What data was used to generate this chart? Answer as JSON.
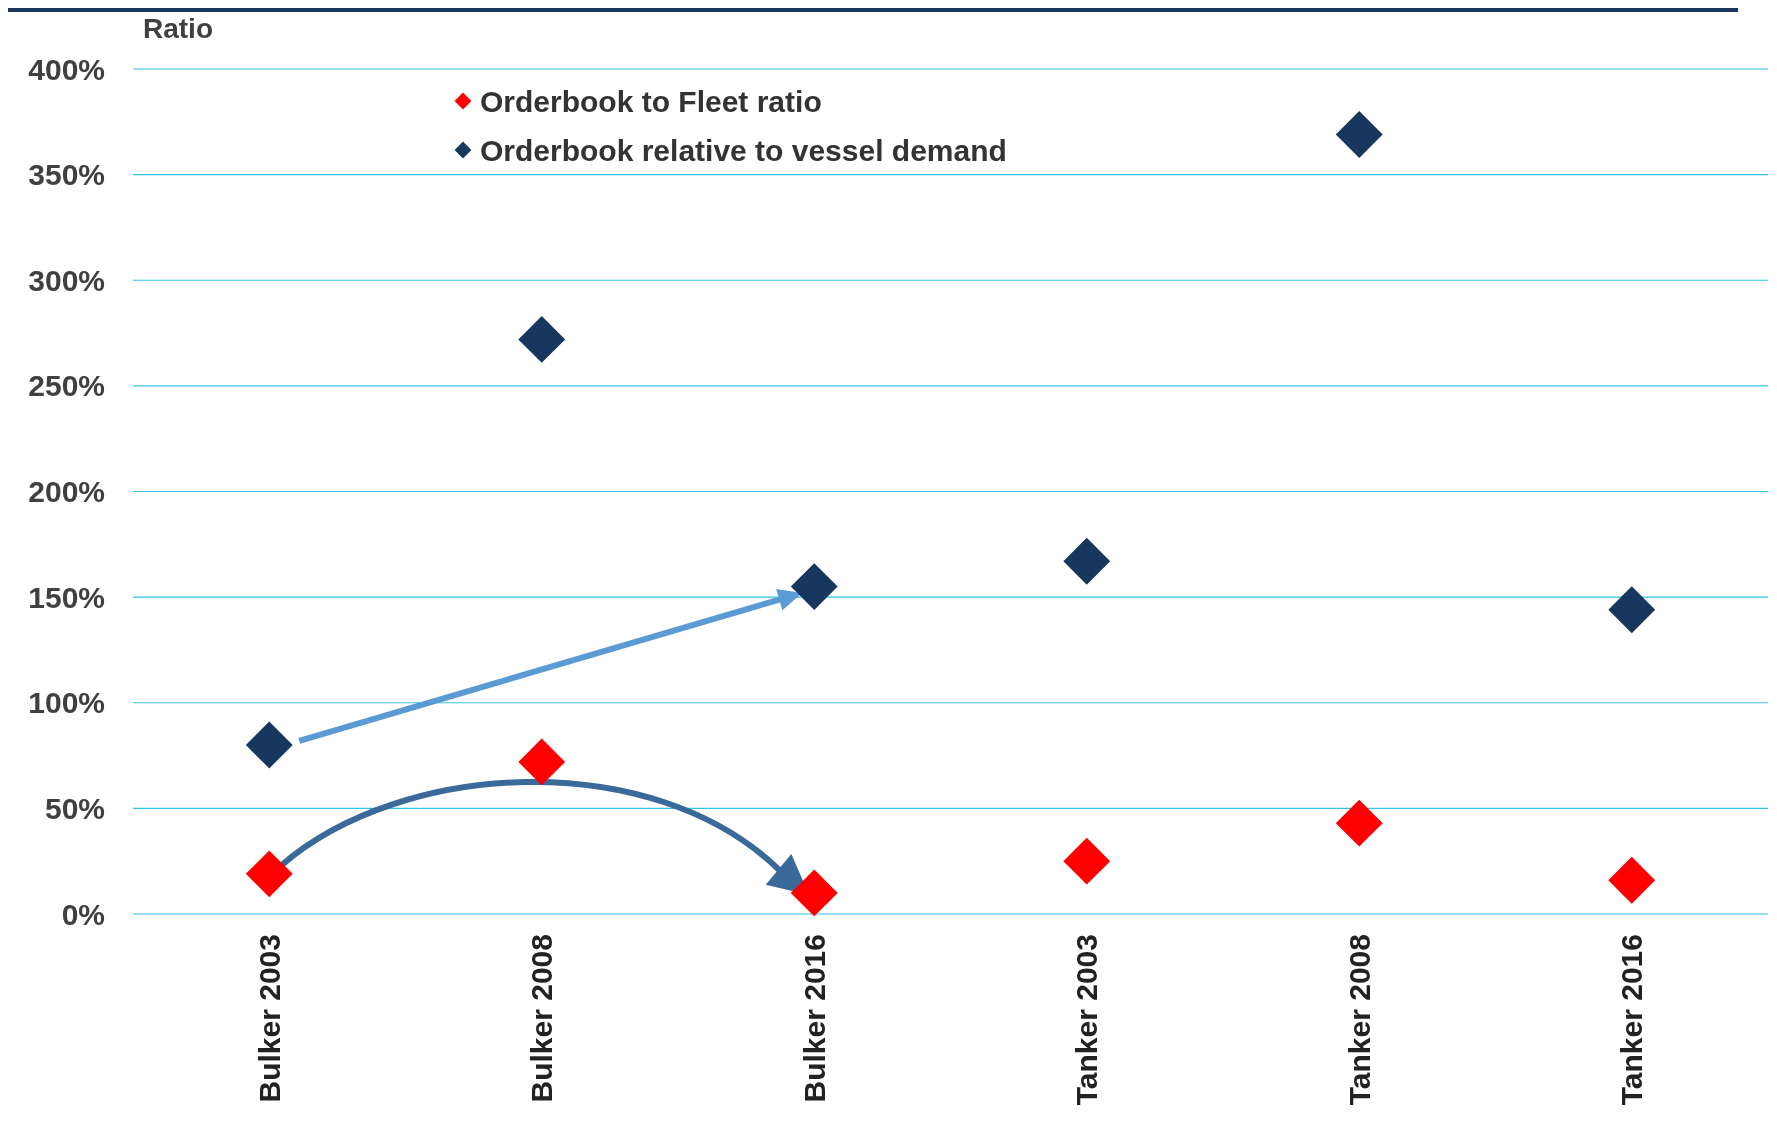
{
  "chart_data": {
    "type": "scatter",
    "ylabel": "Ratio",
    "categories": [
      "Bulker 2003",
      "Bulker 2008",
      "Bulker 2016",
      "Tanker 2003",
      "Tanker 2008",
      "Tanker 2016"
    ],
    "series": [
      {
        "name": "Orderbook to Fleet ratio",
        "color": "#ff0000",
        "values": [
          19,
          72,
          10,
          25,
          43,
          16
        ]
      },
      {
        "name": "Orderbook relative to vessel demand",
        "color": "#17375e",
        "values": [
          80,
          272,
          155,
          167,
          369,
          144
        ]
      }
    ],
    "ylim": [
      0,
      400
    ],
    "yticks": [
      {
        "value": 0,
        "label": "0%"
      },
      {
        "value": 50,
        "label": "50%"
      },
      {
        "value": 100,
        "label": "100%"
      },
      {
        "value": 150,
        "label": "150%"
      },
      {
        "value": 200,
        "label": "200%"
      },
      {
        "value": 250,
        "label": "250%"
      },
      {
        "value": 300,
        "label": "300%"
      },
      {
        "value": 350,
        "label": "350%"
      },
      {
        "value": 400,
        "label": "400%"
      }
    ],
    "grid": "y",
    "legend": "top",
    "marker": "diamond"
  }
}
